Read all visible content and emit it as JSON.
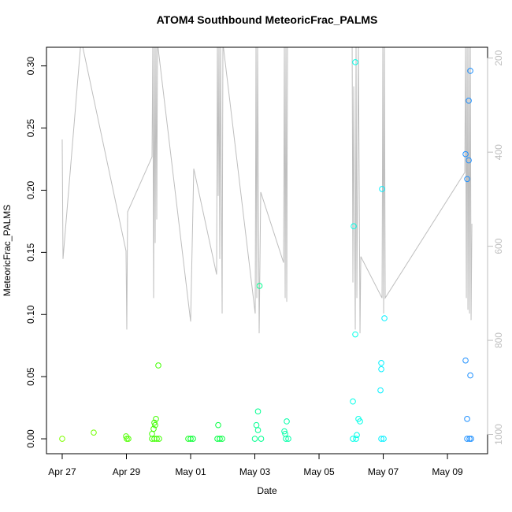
{
  "chart_data": {
    "type": "scatter",
    "title": "ATOM4 Southbound MeteoricFrac_PALMS",
    "x_label": "Date",
    "y_label": "MeteoricFrac_PALMS",
    "xlim": [
      -0.49,
      13.25
    ],
    "ylim": [
      -0.012,
      0.315
    ],
    "y2lim": [
      1041,
      177
    ],
    "xticks": [
      {
        "value": 0,
        "label": "Apr 27"
      },
      {
        "value": 2,
        "label": "Apr 29"
      },
      {
        "value": 4,
        "label": "May 01"
      },
      {
        "value": 6,
        "label": "May 03"
      },
      {
        "value": 8,
        "label": "May 05"
      },
      {
        "value": 10,
        "label": "May 07"
      },
      {
        "value": 12,
        "label": "May 09"
      }
    ],
    "yticks": [
      {
        "value": 0,
        "label": "0.00"
      },
      {
        "value": 0.05,
        "label": "0.05"
      },
      {
        "value": 0.1,
        "label": "0.10"
      },
      {
        "value": 0.15,
        "label": "0.15"
      },
      {
        "value": 0.2,
        "label": "0.20"
      },
      {
        "value": 0.25,
        "label": "0.25"
      },
      {
        "value": 0.3,
        "label": "0.30"
      }
    ],
    "y2ticks": [
      200,
      400,
      600,
      800,
      1000
    ],
    "series": [
      {
        "type": "scatter",
        "x": [
          0,
          0.982,
          1.988,
          2.012,
          2.061,
          2.798,
          2.847,
          2.871,
          2.896,
          2.92,
          2.994,
          2.798,
          2.871,
          2.945,
          3.018,
          3.926,
          4.0,
          4.074,
          4.859,
          4.834,
          4.908,
          4.982,
          6.0,
          6.098,
          6.049,
          6.098,
          6.147,
          6.196,
          6.92,
          6.945,
          6.994,
          6.969,
          7.043,
          9.055,
          9.08,
          9.129,
          9.129,
          9.178,
          9.227,
          9.276,
          9.055,
          9.153,
          9.963,
          9.939,
          9.939,
          9.914,
          10.037,
          9.939,
          10.012,
          12.564,
          12.613,
          12.564,
          12.613,
          12.663,
          12.663,
          12.712,
          12.712,
          12.613,
          12.687,
          12.736
        ],
        "values": [
          0,
          0.005,
          0.002,
          0,
          0,
          0.004,
          0.008,
          0.013,
          0.011,
          0.016,
          0.059,
          0,
          0,
          0,
          0,
          0,
          0,
          0,
          0.011,
          0,
          0,
          0,
          0,
          0.022,
          0.011,
          0.007,
          0.123,
          0,
          0.006,
          0.004,
          0.014,
          0,
          0,
          0.03,
          0.171,
          0.084,
          0.303,
          0.003,
          0.016,
          0.014,
          0,
          0,
          0.201,
          0.061,
          0.056,
          0.039,
          0.097,
          0,
          0,
          0.063,
          0.016,
          0.229,
          0.209,
          0.224,
          0.272,
          0.296,
          0.051,
          0,
          0,
          0
        ],
        "colors": [
          "#80ff00",
          "#70ff00",
          "#50ff00",
          "#50ff00",
          "#50ff00",
          "#40ff00",
          "#40ff00",
          "#40ff00",
          "#40ff00",
          "#40ff00",
          "#40ff00",
          "#40ff00",
          "#40ff00",
          "#40ff00",
          "#40ff00",
          "#20ff20",
          "#00ff30",
          "#00ff30",
          "#00ff40",
          "#00ff40",
          "#00ff40",
          "#00ff40",
          "#00ff90",
          "#00ff90",
          "#00ff90",
          "#00ff90",
          "#00ff90",
          "#00ff90",
          "#00ffa8",
          "#00ffa8",
          "#00ffa8",
          "#00ffa8",
          "#00ffa8",
          "#00ffe8",
          "#00ffe8",
          "#00ffe8",
          "#00ffe8",
          "#00ffe8",
          "#00ffe8",
          "#00ffe8",
          "#00ffe8",
          "#00ffe8",
          "#00f0ff",
          "#00f0ff",
          "#00f0ff",
          "#00f0ff",
          "#00f0ff",
          "#00f0ff",
          "#00f0ff",
          "#1e90ff",
          "#1e90ff",
          "#1e90ff",
          "#1e90ff",
          "#1e90ff",
          "#1e90ff",
          "#1e90ff",
          "#1e90ff",
          "#1e90ff",
          "#1e90ff",
          "#1e90ff"
        ]
      },
      {
        "type": "line",
        "axis": "y2",
        "color": "#bebebe",
        "x": [
          0,
          0.025,
          0.589,
          1.988,
          2.012,
          2.037,
          2.798,
          2.822,
          2.847,
          2.871,
          2.896,
          2.92,
          2.945,
          2.969,
          4.0,
          4.098,
          4.81,
          4.834,
          4.859,
          4.883,
          4.908,
          4.933,
          4.982,
          5.006,
          6.012,
          6.037,
          6.061,
          6.086,
          6.135,
          6.184,
          6.896,
          6.92,
          6.945,
          6.969,
          6.994,
          7.018,
          9.031,
          9.055,
          9.08,
          9.129,
          9.153,
          9.178,
          9.227,
          9.276,
          9.301,
          9.963,
          9.988,
          10.012,
          10.037,
          10.061,
          12.54,
          12.564,
          12.589,
          12.613,
          12.638,
          12.663,
          12.687,
          12.712,
          12.736,
          12.761
        ],
        "values": [
          373,
          627,
          160,
          610,
          777,
          527,
          410,
          168,
          710,
          168,
          593,
          168,
          543,
          168,
          760,
          435,
          660,
          168,
          493,
          168,
          627,
          168,
          743,
          168,
          743,
          168,
          710,
          168,
          785,
          485,
          635,
          168,
          710,
          168,
          718,
          168,
          168,
          677,
          260,
          777,
          168,
          710,
          168,
          785,
          622,
          710,
          168,
          743,
          168,
          710,
          443,
          168,
          710,
          168,
          735,
          168,
          743,
          168,
          757,
          552
        ]
      }
    ]
  }
}
